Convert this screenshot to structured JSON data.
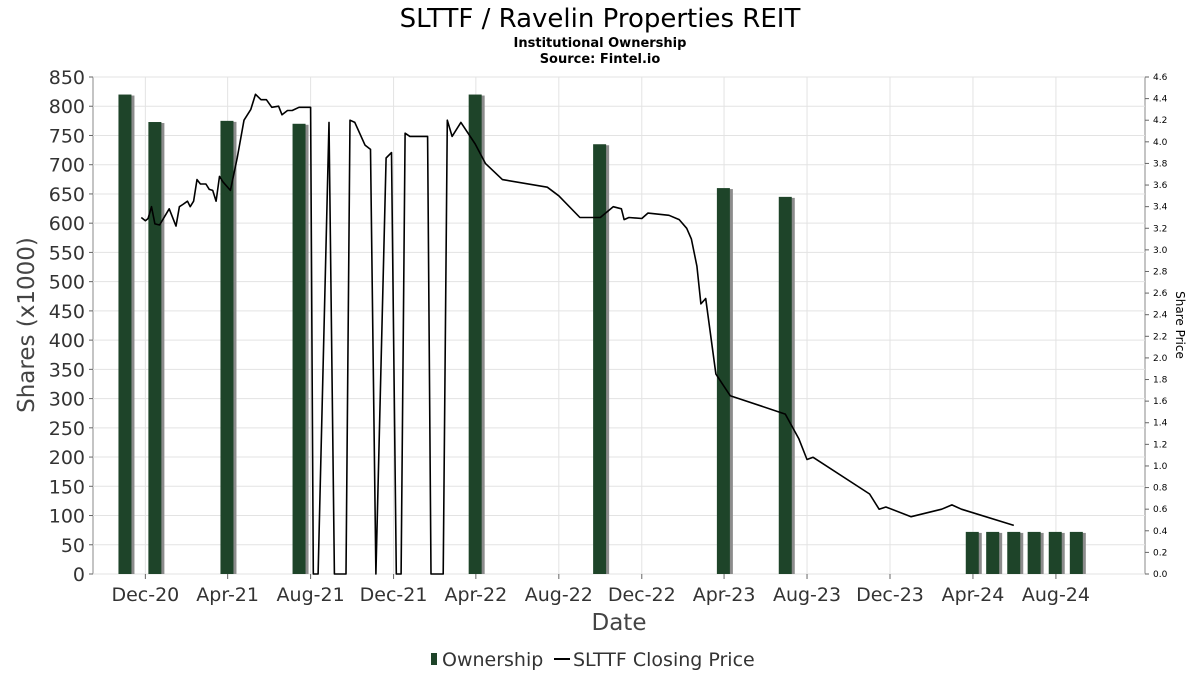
{
  "chart_data": {
    "type": "bar",
    "title": "SLTTF / Ravelin Properties REIT",
    "subtitle_lines": [
      "Institutional Ownership",
      "Source: Fintel.io"
    ],
    "xlabel": "Date",
    "ylabel_left": "Shares (x1000)",
    "ylabel_right": "Share Price",
    "x_range": [
      "2020-09-15",
      "2024-12-10"
    ],
    "ylim_left": [
      0,
      850
    ],
    "ylim_right": [
      0,
      4.6
    ],
    "left_ticks": [
      0,
      50,
      100,
      150,
      200,
      250,
      300,
      350,
      400,
      450,
      500,
      550,
      600,
      650,
      700,
      750,
      800,
      850
    ],
    "right_ticks": [
      0,
      0.2,
      0.4,
      0.6,
      0.8,
      1.0,
      1.2,
      1.4,
      1.6,
      1.8,
      2.0,
      2.2,
      2.4,
      2.6,
      2.8,
      3.0,
      3.2,
      3.4,
      3.6,
      3.8,
      4.0,
      4.2,
      4.4,
      4.6
    ],
    "x_ticks": [
      {
        "date": "2020-12-01",
        "label": "Dec-20"
      },
      {
        "date": "2021-04-01",
        "label": "Apr-21"
      },
      {
        "date": "2021-08-01",
        "label": "Aug-21"
      },
      {
        "date": "2021-12-01",
        "label": "Dec-21"
      },
      {
        "date": "2022-04-01",
        "label": "Apr-22"
      },
      {
        "date": "2022-08-01",
        "label": "Aug-22"
      },
      {
        "date": "2022-12-01",
        "label": "Dec-22"
      },
      {
        "date": "2023-04-01",
        "label": "Apr-23"
      },
      {
        "date": "2023-08-01",
        "label": "Aug-23"
      },
      {
        "date": "2023-12-01",
        "label": "Dec-23"
      },
      {
        "date": "2024-04-01",
        "label": "Apr-24"
      },
      {
        "date": "2024-08-01",
        "label": "Aug-24"
      }
    ],
    "grid": true,
    "legend_position": "bottom",
    "series": [
      {
        "name": "Ownership",
        "kind": "bar",
        "axis": "left",
        "color": "#1e4429",
        "shadow_color": "#8c8c8c",
        "points": [
          {
            "x": "2020-11-01",
            "y": 820
          },
          {
            "x": "2020-12-15",
            "y": 773
          },
          {
            "x": "2021-03-31",
            "y": 775
          },
          {
            "x": "2021-07-15",
            "y": 770
          },
          {
            "x": "2022-03-31",
            "y": 820
          },
          {
            "x": "2022-09-30",
            "y": 735
          },
          {
            "x": "2023-03-31",
            "y": 660
          },
          {
            "x": "2023-06-30",
            "y": 645
          },
          {
            "x": "2024-03-31",
            "y": 72
          },
          {
            "x": "2024-04-30",
            "y": 72
          },
          {
            "x": "2024-05-31",
            "y": 72
          },
          {
            "x": "2024-06-30",
            "y": 72
          },
          {
            "x": "2024-07-31",
            "y": 72
          },
          {
            "x": "2024-08-31",
            "y": 72
          }
        ]
      },
      {
        "name": "SLTTF Closing Price",
        "kind": "line",
        "axis": "right",
        "color": "#000000",
        "points": [
          {
            "x": "2020-11-25",
            "y": 3.3
          },
          {
            "x": "2020-12-01",
            "y": 3.27
          },
          {
            "x": "2020-12-05",
            "y": 3.29
          },
          {
            "x": "2020-12-10",
            "y": 3.4
          },
          {
            "x": "2020-12-15",
            "y": 3.24
          },
          {
            "x": "2020-12-22",
            "y": 3.23
          },
          {
            "x": "2021-01-05",
            "y": 3.38
          },
          {
            "x": "2021-01-15",
            "y": 3.22
          },
          {
            "x": "2021-01-20",
            "y": 3.4
          },
          {
            "x": "2021-01-25",
            "y": 3.42
          },
          {
            "x": "2021-02-01",
            "y": 3.45
          },
          {
            "x": "2021-02-05",
            "y": 3.4
          },
          {
            "x": "2021-02-10",
            "y": 3.45
          },
          {
            "x": "2021-02-15",
            "y": 3.65
          },
          {
            "x": "2021-02-20",
            "y": 3.61
          },
          {
            "x": "2021-02-28",
            "y": 3.61
          },
          {
            "x": "2021-03-05",
            "y": 3.56
          },
          {
            "x": "2021-03-10",
            "y": 3.55
          },
          {
            "x": "2021-03-15",
            "y": 3.45
          },
          {
            "x": "2021-03-20",
            "y": 3.68
          },
          {
            "x": "2021-03-25",
            "y": 3.63
          },
          {
            "x": "2021-04-05",
            "y": 3.55
          },
          {
            "x": "2021-04-15",
            "y": 3.85
          },
          {
            "x": "2021-04-25",
            "y": 4.2
          },
          {
            "x": "2021-05-05",
            "y": 4.3
          },
          {
            "x": "2021-05-12",
            "y": 4.44
          },
          {
            "x": "2021-05-20",
            "y": 4.39
          },
          {
            "x": "2021-05-28",
            "y": 4.39
          },
          {
            "x": "2021-06-05",
            "y": 4.32
          },
          {
            "x": "2021-06-15",
            "y": 4.33
          },
          {
            "x": "2021-06-20",
            "y": 4.25
          },
          {
            "x": "2021-06-28",
            "y": 4.29
          },
          {
            "x": "2021-07-05",
            "y": 4.29
          },
          {
            "x": "2021-07-15",
            "y": 4.32
          },
          {
            "x": "2021-08-01",
            "y": 4.32
          },
          {
            "x": "2021-08-05",
            "y": 0
          },
          {
            "x": "2021-08-12",
            "y": 0
          },
          {
            "x": "2021-08-28",
            "y": 4.18
          },
          {
            "x": "2021-09-05",
            "y": 0
          },
          {
            "x": "2021-09-22",
            "y": 0
          },
          {
            "x": "2021-09-28",
            "y": 4.2
          },
          {
            "x": "2021-10-05",
            "y": 4.18
          },
          {
            "x": "2021-10-20",
            "y": 3.97
          },
          {
            "x": "2021-10-28",
            "y": 3.93
          },
          {
            "x": "2021-11-05",
            "y": 0
          },
          {
            "x": "2021-11-20",
            "y": 3.85
          },
          {
            "x": "2021-11-28",
            "y": 3.9
          },
          {
            "x": "2021-12-05",
            "y": 0
          },
          {
            "x": "2021-12-12",
            "y": 0
          },
          {
            "x": "2021-12-18",
            "y": 4.08
          },
          {
            "x": "2021-12-25",
            "y": 4.05
          },
          {
            "x": "2022-01-05",
            "y": 4.05
          },
          {
            "x": "2022-01-20",
            "y": 4.05
          },
          {
            "x": "2022-01-25",
            "y": 0
          },
          {
            "x": "2022-02-12",
            "y": 0
          },
          {
            "x": "2022-02-18",
            "y": 4.2
          },
          {
            "x": "2022-02-25",
            "y": 4.05
          },
          {
            "x": "2022-03-10",
            "y": 4.18
          },
          {
            "x": "2022-03-31",
            "y": 3.98
          },
          {
            "x": "2022-04-15",
            "y": 3.8
          },
          {
            "x": "2022-05-10",
            "y": 3.65
          },
          {
            "x": "2022-07-15",
            "y": 3.58
          },
          {
            "x": "2022-08-01",
            "y": 3.5
          },
          {
            "x": "2022-09-01",
            "y": 3.3
          },
          {
            "x": "2022-10-01",
            "y": 3.3
          },
          {
            "x": "2022-10-20",
            "y": 3.4
          },
          {
            "x": "2022-11-01",
            "y": 3.38
          },
          {
            "x": "2022-11-05",
            "y": 3.28
          },
          {
            "x": "2022-11-12",
            "y": 3.3
          },
          {
            "x": "2022-12-01",
            "y": 3.29
          },
          {
            "x": "2022-12-10",
            "y": 3.34
          },
          {
            "x": "2023-01-10",
            "y": 3.32
          },
          {
            "x": "2023-01-25",
            "y": 3.28
          },
          {
            "x": "2023-02-05",
            "y": 3.2
          },
          {
            "x": "2023-02-12",
            "y": 3.1
          },
          {
            "x": "2023-02-20",
            "y": 2.85
          },
          {
            "x": "2023-02-26",
            "y": 2.5
          },
          {
            "x": "2023-03-05",
            "y": 2.55
          },
          {
            "x": "2023-03-20",
            "y": 1.85
          },
          {
            "x": "2023-04-10",
            "y": 1.65
          },
          {
            "x": "2023-06-30",
            "y": 1.48
          },
          {
            "x": "2023-07-20",
            "y": 1.25
          },
          {
            "x": "2023-08-01",
            "y": 1.06
          },
          {
            "x": "2023-08-10",
            "y": 1.08
          },
          {
            "x": "2023-11-01",
            "y": 0.74
          },
          {
            "x": "2023-11-15",
            "y": 0.6
          },
          {
            "x": "2023-11-25",
            "y": 0.62
          },
          {
            "x": "2024-01-01",
            "y": 0.53
          },
          {
            "x": "2024-02-15",
            "y": 0.6
          },
          {
            "x": "2024-03-01",
            "y": 0.64
          },
          {
            "x": "2024-03-15",
            "y": 0.6
          },
          {
            "x": "2024-05-31",
            "y": 0.45
          }
        ]
      }
    ]
  }
}
